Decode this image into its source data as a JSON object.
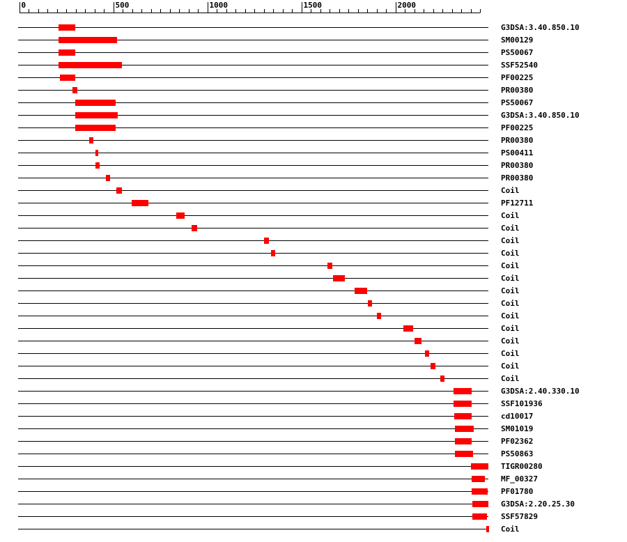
{
  "chart_data": {
    "type": "domain",
    "color": "#ff0000",
    "xlim": [
      0,
      2493
    ],
    "xticks": [
      0,
      500,
      1000,
      1500,
      2000
    ],
    "minor_xticks": [
      0,
      50,
      100,
      150,
      200,
      250,
      300,
      350,
      400,
      450,
      500,
      550,
      600,
      650,
      700,
      750,
      800,
      850,
      900,
      950,
      1000,
      1050,
      1100,
      1150,
      1200,
      1250,
      1300,
      1350,
      1400,
      1450,
      1500,
      1550,
      1600,
      1650,
      1700,
      1750,
      1800,
      1850,
      1900,
      1950,
      2000,
      2050,
      2100,
      2150,
      2200,
      2250,
      2300,
      2350,
      2400,
      2450
    ],
    "rows": [
      {
        "label": "G3DSA:3.40.850.10",
        "start": 207,
        "end": 296
      },
      {
        "label": "SM00129",
        "start": 207,
        "end": 519
      },
      {
        "label": "PS50067",
        "start": 207,
        "end": 296
      },
      {
        "label": "SSF52540",
        "start": 207,
        "end": 544
      },
      {
        "label": "PF00225",
        "start": 215,
        "end": 296
      },
      {
        "label": "PR00380",
        "start": 281,
        "end": 307
      },
      {
        "label": "PS50067",
        "start": 296,
        "end": 511
      },
      {
        "label": "G3DSA:3.40.850.10",
        "start": 296,
        "end": 522
      },
      {
        "label": "PF00225",
        "start": 296,
        "end": 511
      },
      {
        "label": "PR00380",
        "start": 370,
        "end": 393
      },
      {
        "label": "PS00411",
        "start": 404,
        "end": 419
      },
      {
        "label": "PR00380",
        "start": 404,
        "end": 426
      },
      {
        "label": "PR00380",
        "start": 459,
        "end": 481
      },
      {
        "label": "Coil",
        "start": 515,
        "end": 544
      },
      {
        "label": "PF12711",
        "start": 596,
        "end": 685
      },
      {
        "label": "Coil",
        "start": 833,
        "end": 878
      },
      {
        "label": "Coil",
        "start": 915,
        "end": 944
      },
      {
        "label": "Coil",
        "start": 1300,
        "end": 1326
      },
      {
        "label": "Coil",
        "start": 1337,
        "end": 1359
      },
      {
        "label": "Coil",
        "start": 1637,
        "end": 1663
      },
      {
        "label": "Coil",
        "start": 1667,
        "end": 1730
      },
      {
        "label": "Coil",
        "start": 1781,
        "end": 1848
      },
      {
        "label": "Coil",
        "start": 1852,
        "end": 1874
      },
      {
        "label": "Coil",
        "start": 1900,
        "end": 1922
      },
      {
        "label": "Coil",
        "start": 2041,
        "end": 2093
      },
      {
        "label": "Coil",
        "start": 2100,
        "end": 2137
      },
      {
        "label": "Coil",
        "start": 2156,
        "end": 2178
      },
      {
        "label": "Coil",
        "start": 2185,
        "end": 2211
      },
      {
        "label": "Coil",
        "start": 2237,
        "end": 2259
      },
      {
        "label": "G3DSA:2.40.330.10",
        "start": 2307,
        "end": 2404
      },
      {
        "label": "SSF101936",
        "start": 2307,
        "end": 2404
      },
      {
        "label": "cd10017",
        "start": 2311,
        "end": 2404
      },
      {
        "label": "SM01019",
        "start": 2315,
        "end": 2415
      },
      {
        "label": "PF02362",
        "start": 2315,
        "end": 2404
      },
      {
        "label": "PS50863",
        "start": 2315,
        "end": 2411
      },
      {
        "label": "TIGR00280",
        "start": 2400,
        "end": 2493
      },
      {
        "label": "MF_00327",
        "start": 2404,
        "end": 2474
      },
      {
        "label": "PF01780",
        "start": 2404,
        "end": 2489
      },
      {
        "label": "G3DSA:2.20.25.30",
        "start": 2407,
        "end": 2493
      },
      {
        "label": "SSF57829",
        "start": 2407,
        "end": 2485
      },
      {
        "label": "Coil",
        "start": 2481,
        "end": 2493
      }
    ]
  }
}
